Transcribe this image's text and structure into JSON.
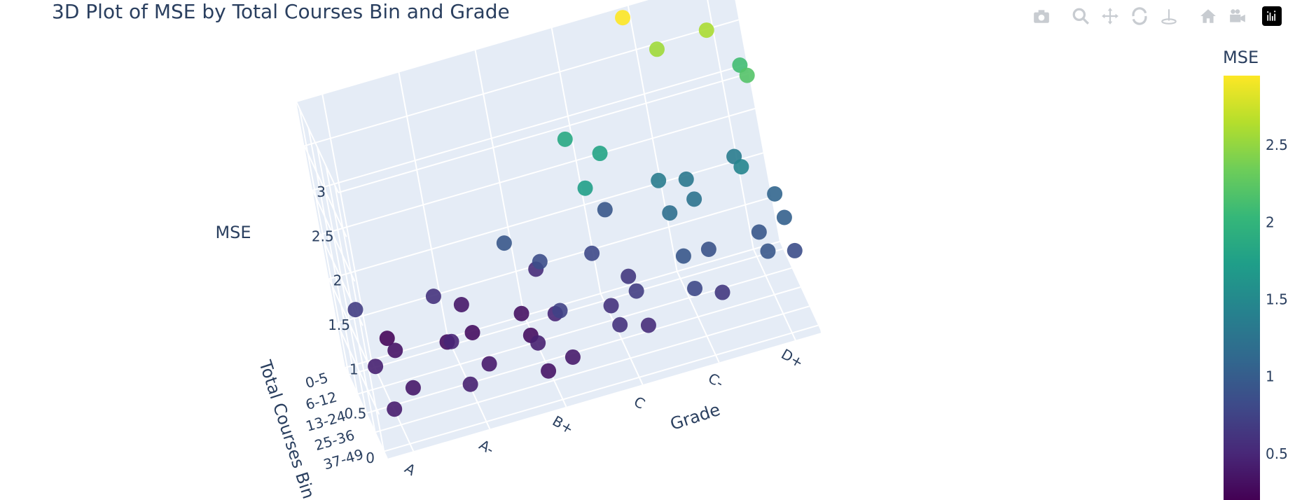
{
  "title": "3D Plot of MSE by Total Courses Bin and Grade",
  "toolbar": {
    "icons": [
      "camera-icon",
      "zoom-icon",
      "pan-icon",
      "orbit-rotation-icon",
      "turntable-rotation-icon",
      "home-icon",
      "camera-view-icon",
      "plotly-logo-icon"
    ]
  },
  "chart_data": {
    "type": "scatter3d",
    "title": "3D Plot of MSE by Total Courses Bin and Grade",
    "x_axis": {
      "label": "Grade",
      "ticks": [
        "A",
        "A-",
        "B+",
        "C",
        "C-",
        "D+"
      ]
    },
    "y_axis": {
      "label": "Total Courses Bin",
      "ticks": [
        "0-5",
        "6-12",
        "13-24",
        "25-36",
        "37-49"
      ]
    },
    "z_axis": {
      "label": "MSE",
      "ticks": [
        "0",
        "0.5",
        "1",
        "1.5",
        "2",
        "2.5",
        "3"
      ],
      "range": [
        0,
        3
      ]
    },
    "colorbar": {
      "title": "MSE",
      "ticks": [
        "0.5",
        "1",
        "1.5",
        "2",
        "2.5"
      ],
      "range": [
        0.2,
        2.95
      ],
      "colorscale": "Viridis"
    },
    "colors": {
      "grid_bg": "#e5ecf6",
      "grid_line": "#ffffff",
      "text": "#2a3f5f"
    },
    "points": [
      {
        "grade": "A",
        "bin": "0-5",
        "mse": 0.7
      },
      {
        "grade": "A",
        "bin": "6-12",
        "mse": 0.35
      },
      {
        "grade": "A",
        "bin": "13-24",
        "mse": 0.45
      },
      {
        "grade": "A",
        "bin": "25-36",
        "mse": 0.38
      },
      {
        "grade": "A",
        "bin": "37-49",
        "mse": 0.42
      },
      {
        "grade": "A",
        "bin": "0-5",
        "mse": 0.25
      },
      {
        "grade": "A-",
        "bin": "0-5",
        "mse": 0.6
      },
      {
        "grade": "A-",
        "bin": "6-12",
        "mse": 0.3
      },
      {
        "grade": "A-",
        "bin": "13-24",
        "mse": 0.48
      },
      {
        "grade": "A-",
        "bin": "25-36",
        "mse": 0.4
      },
      {
        "grade": "A-",
        "bin": "37-49",
        "mse": 0.45
      },
      {
        "grade": "A-",
        "bin": "0-5",
        "mse": 0.38
      },
      {
        "grade": "A-",
        "bin": "6-12",
        "mse": 0.3
      },
      {
        "grade": "B+",
        "bin": "0-5",
        "mse": 0.55
      },
      {
        "grade": "B+",
        "bin": "6-12",
        "mse": 0.33
      },
      {
        "grade": "B+",
        "bin": "13-24",
        "mse": 0.5
      },
      {
        "grade": "B+",
        "bin": "25-36",
        "mse": 0.45
      },
      {
        "grade": "B+",
        "bin": "37-49",
        "mse": 0.4
      },
      {
        "grade": "B+",
        "bin": "0-5",
        "mse": 0.95
      },
      {
        "grade": "B+",
        "bin": "6-12",
        "mse": 0.85
      },
      {
        "grade": "B+",
        "bin": "13-24",
        "mse": 0.3
      },
      {
        "grade": "B+",
        "bin": "25-36",
        "mse": 0.75
      },
      {
        "grade": "B+",
        "bin": "37-49",
        "mse": 0.35
      },
      {
        "grade": "C",
        "bin": "0-5",
        "mse": 0.95
      },
      {
        "grade": "C",
        "bin": "6-12",
        "mse": 0.8
      },
      {
        "grade": "C",
        "bin": "13-24",
        "mse": 0.65
      },
      {
        "grade": "C",
        "bin": "25-36",
        "mse": 0.6
      },
      {
        "grade": "C",
        "bin": "37-49",
        "mse": 0.55
      },
      {
        "grade": "C",
        "bin": "0-5",
        "mse": 1.85
      },
      {
        "grade": "C",
        "bin": "6-12",
        "mse": 1.8
      },
      {
        "grade": "C",
        "bin": "13-24",
        "mse": 1.75
      },
      {
        "grade": "C",
        "bin": "25-36",
        "mse": 0.7
      },
      {
        "grade": "C",
        "bin": "37-49",
        "mse": 0.6
      },
      {
        "grade": "C-",
        "bin": "0-5",
        "mse": 2.55
      },
      {
        "grade": "C-",
        "bin": "6-12",
        "mse": 1.35
      },
      {
        "grade": "C-",
        "bin": "13-24",
        "mse": 1.25
      },
      {
        "grade": "C-",
        "bin": "25-36",
        "mse": 0.95
      },
      {
        "grade": "C-",
        "bin": "37-49",
        "mse": 0.65
      },
      {
        "grade": "C-",
        "bin": "0-5",
        "mse": 2.95
      },
      {
        "grade": "C-",
        "bin": "6-12",
        "mse": 1.3
      },
      {
        "grade": "C-",
        "bin": "13-24",
        "mse": 1.2
      },
      {
        "grade": "C-",
        "bin": "25-36",
        "mse": 0.9
      },
      {
        "grade": "C-",
        "bin": "37-49",
        "mse": 0.8
      },
      {
        "grade": "D+",
        "bin": "0-5",
        "mse": 2.1
      },
      {
        "grade": "D+",
        "bin": "6-12",
        "mse": 1.35
      },
      {
        "grade": "D+",
        "bin": "13-24",
        "mse": 1.1
      },
      {
        "grade": "D+",
        "bin": "25-36",
        "mse": 0.95
      },
      {
        "grade": "D+",
        "bin": "37-49",
        "mse": 0.85
      },
      {
        "grade": "D+",
        "bin": "0-5",
        "mse": 2.6
      },
      {
        "grade": "D+",
        "bin": "6-12",
        "mse": 2.2
      },
      {
        "grade": "D+",
        "bin": "13-24",
        "mse": 1.45
      },
      {
        "grade": "D+",
        "bin": "25-36",
        "mse": 1.05
      },
      {
        "grade": "D+",
        "bin": "37-49",
        "mse": 0.95
      }
    ]
  }
}
